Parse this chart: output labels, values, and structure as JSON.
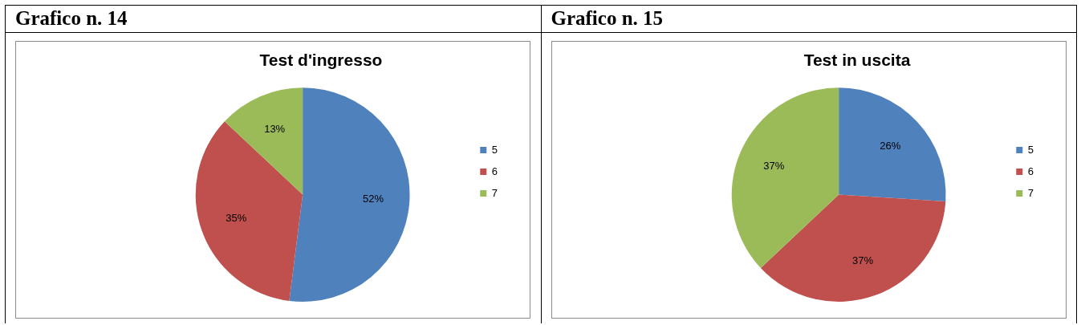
{
  "chart_data": [
    {
      "type": "pie",
      "title": "Test d'ingresso",
      "annotations": [
        "Grafico n. 14"
      ],
      "categories": [
        "5",
        "6",
        "7"
      ],
      "values": [
        52,
        35,
        13
      ],
      "value_labels": [
        "52%",
        "35%",
        "13%"
      ],
      "colors": [
        "#4f81bd",
        "#c0504d",
        "#9bbb59"
      ],
      "legend": "right"
    },
    {
      "type": "pie",
      "title": "Test in uscita",
      "annotations": [
        "Grafico n. 15"
      ],
      "categories": [
        "5",
        "6",
        "7"
      ],
      "values": [
        26,
        37,
        37
      ],
      "value_labels": [
        "26%",
        "37%",
        "37%"
      ],
      "colors": [
        "#4f81bd",
        "#c0504d",
        "#9bbb59"
      ],
      "legend": "right"
    }
  ]
}
